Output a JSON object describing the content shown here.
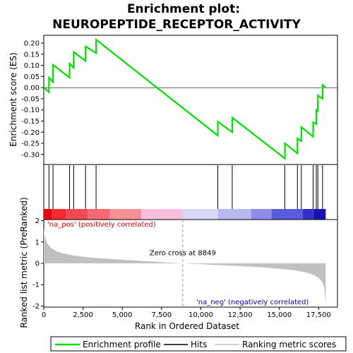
{
  "chart_data": {
    "type": "line",
    "title_line1": "Enrichment plot:",
    "title_line2": "NEUROPEPTIDE_RECEPTOR_ACTIVITY",
    "es_panel": {
      "ylabel": "Enrichment score (ES)",
      "ylim": [
        -0.345,
        0.235
      ],
      "yticks": [
        "0.20",
        "0.15",
        "0.10",
        "0.05",
        "0.00",
        "-0.05",
        "-0.10",
        "-0.15",
        "-0.20",
        "-0.25",
        "-0.30"
      ],
      "ytick_values": [
        0.2,
        0.15,
        0.1,
        0.05,
        0.0,
        -0.05,
        -0.1,
        -0.15,
        -0.2,
        -0.25,
        -0.3
      ],
      "line_color": "#00e000",
      "points_x": [
        0,
        330,
        335,
        590,
        595,
        1640,
        1645,
        1900,
        1905,
        2660,
        2665,
        3330,
        3335,
        11080,
        11085,
        12000,
        12005,
        15350,
        15355,
        16150,
        16155,
        16400,
        16405,
        17150,
        17155,
        17350,
        17355,
        17450,
        17455,
        17750,
        17755,
        17950
      ],
      "points_y": [
        0.0,
        -0.02,
        0.045,
        0.025,
        0.102,
        0.045,
        0.108,
        0.09,
        0.16,
        0.12,
        0.185,
        0.155,
        0.215,
        -0.215,
        -0.153,
        -0.2,
        -0.135,
        -0.318,
        -0.25,
        -0.295,
        -0.228,
        -0.24,
        -0.177,
        -0.22,
        -0.155,
        -0.163,
        -0.1,
        -0.105,
        -0.035,
        -0.05,
        0.012,
        0.0
      ]
    },
    "hits_panel": {
      "hit_positions": [
        330,
        590,
        1640,
        1900,
        2660,
        3330,
        11080,
        12000,
        15350,
        16150,
        16400,
        17150,
        17350,
        17450,
        17750
      ],
      "color_bands": [
        {
          "from": 0,
          "to": 500,
          "color": "#e8000a"
        },
        {
          "from": 500,
          "to": 1400,
          "color": "#f52a30"
        },
        {
          "from": 1400,
          "to": 2800,
          "color": "#f54a55"
        },
        {
          "from": 2800,
          "to": 4200,
          "color": "#f56a75"
        },
        {
          "from": 4200,
          "to": 6200,
          "color": "#f69095"
        },
        {
          "from": 6200,
          "to": 8849,
          "color": "#f8c0dc"
        },
        {
          "from": 8849,
          "to": 11100,
          "color": "#d8d8f8"
        },
        {
          "from": 11100,
          "to": 13200,
          "color": "#b8b8f2"
        },
        {
          "from": 13200,
          "to": 14500,
          "color": "#8e8ee8"
        },
        {
          "from": 14500,
          "to": 16500,
          "color": "#5a5adc"
        },
        {
          "from": 16500,
          "to": 17200,
          "color": "#3030c8"
        },
        {
          "from": 17200,
          "to": 17950,
          "color": "#1a10b0"
        }
      ]
    },
    "metric_panel": {
      "ylabel": "Ranked list metric (PreRanked)",
      "ylim": [
        -2.05,
        2.05
      ],
      "yticks": [
        "2",
        "1",
        "0",
        "-1",
        "-2"
      ],
      "ytick_values": [
        2,
        1,
        0,
        -1,
        -2
      ],
      "fill_color": "#c0c0c0",
      "profile_x": [
        0,
        50,
        150,
        300,
        500,
        800,
        1200,
        1800,
        2500,
        3500,
        5000,
        7000,
        8849,
        10500,
        12500,
        14000,
        15000,
        16000,
        16700,
        17200,
        17500,
        17700,
        17850,
        17900,
        17950
      ],
      "profile_y": [
        1.65,
        1.3,
        1.05,
        0.85,
        0.7,
        0.57,
        0.47,
        0.38,
        0.31,
        0.24,
        0.17,
        0.08,
        0.0,
        -0.06,
        -0.13,
        -0.19,
        -0.25,
        -0.33,
        -0.43,
        -0.55,
        -0.68,
        -0.85,
        -1.1,
        -1.5,
        -1.9
      ],
      "zero_cross_label": "Zero cross at 8849",
      "zero_cross_x": 8849,
      "pos_label": "'na_pos' (positively correlated)",
      "neg_label": "'na_neg' (negatively correlated)",
      "pos_color": "#e00000",
      "neg_color": "#0000d0"
    },
    "xaxis": {
      "xlabel": "Rank in Ordered Dataset",
      "xlim": [
        0,
        18700
      ],
      "xticks": [
        "0",
        "2,500",
        "5,000",
        "7,500",
        "10,000",
        "12,500",
        "15,000",
        "17,500"
      ],
      "xtick_values": [
        0,
        2500,
        5000,
        7500,
        10000,
        12500,
        15000,
        17500
      ]
    },
    "legend": {
      "entries": [
        {
          "label": "Enrichment profile",
          "color": "#00e000"
        },
        {
          "label": "Hits",
          "color": "#000000"
        },
        {
          "label": "Ranking metric scores",
          "color": "#c0c0c0"
        }
      ]
    }
  }
}
